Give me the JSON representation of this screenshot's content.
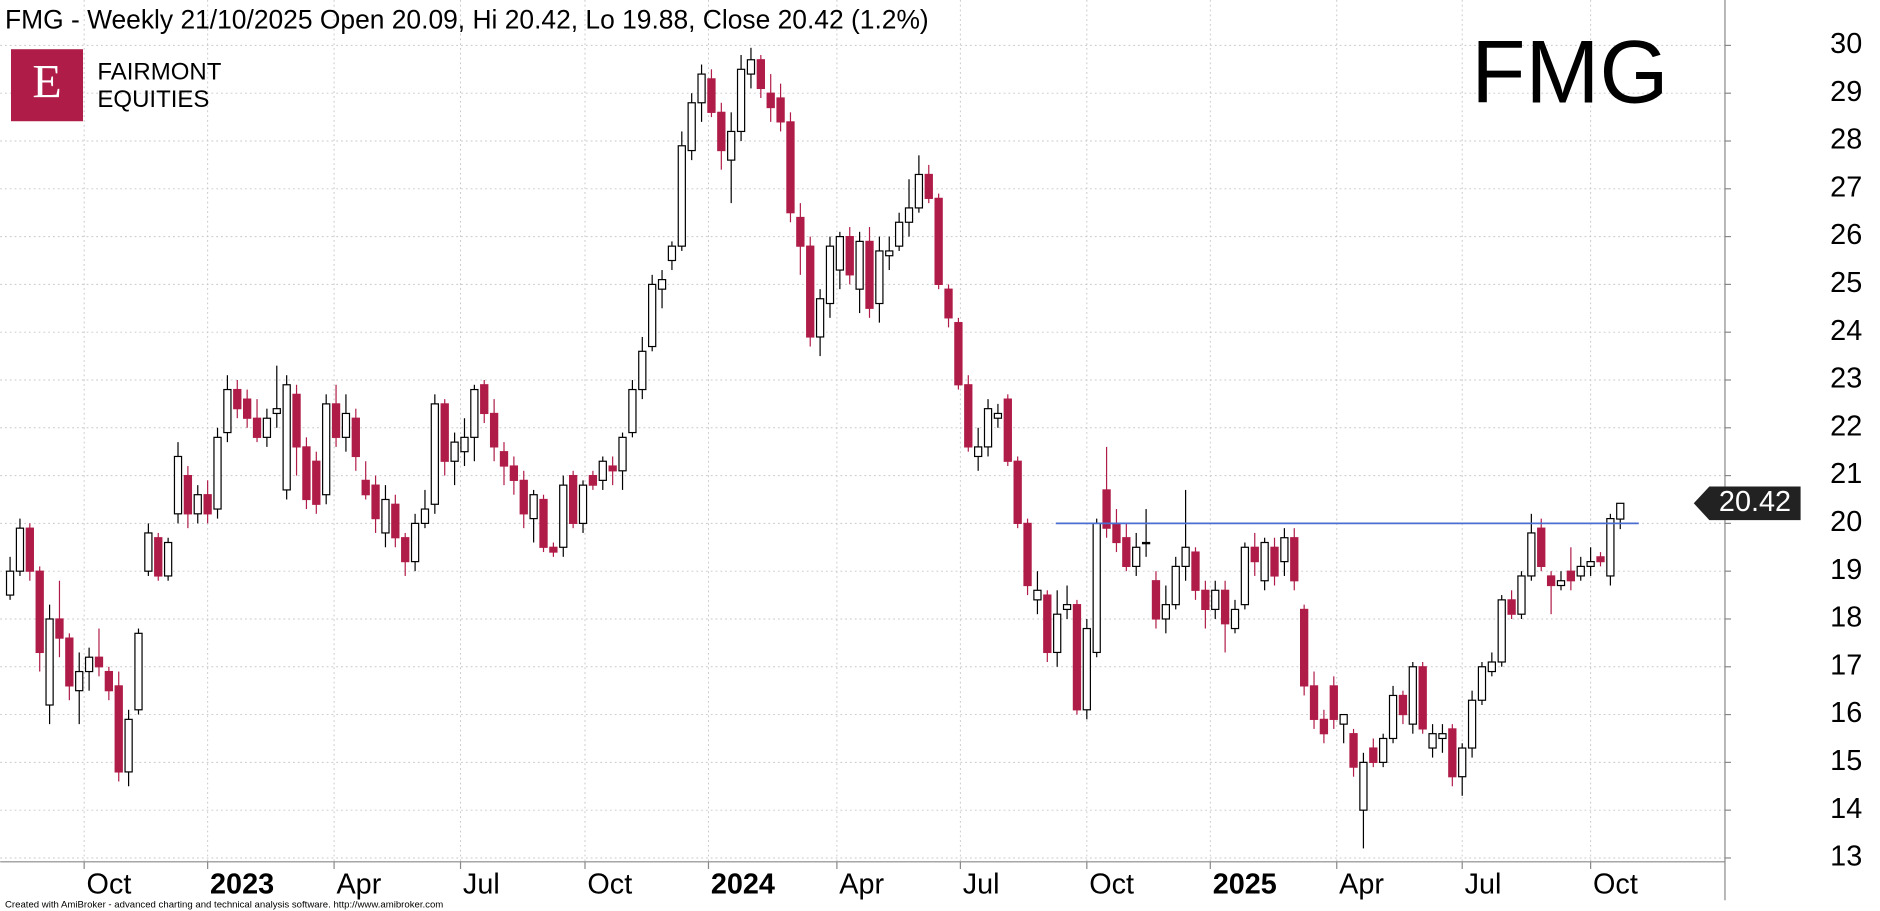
{
  "chart_data": {
    "type": "candlestick",
    "title": "FMG - Weekly 21/10/2025 Open 20.09, Hi 20.42, Lo 19.88, Close 20.42 (1.2%)",
    "symbol": "FMG",
    "logo": {
      "letter": "E",
      "line1": "FAIRMONT",
      "line2": "EQUITIES"
    },
    "footer": "Created with AmiBroker - advanced charting and technical analysis software. http://www.amibroker.com",
    "up_color": "#ffffff",
    "down_color": "#b01c48",
    "line_color": "#4a6fd1",
    "hline": 20,
    "price_marker": 20.42,
    "grid": true,
    "ylim": [
      12.92,
      30.95
    ],
    "yticks": [
      13,
      14,
      15,
      16,
      17,
      18,
      19,
      20,
      21,
      22,
      23,
      24,
      25,
      26,
      27,
      28,
      29,
      30
    ],
    "xlim": [
      -1,
      173.6
    ],
    "xticks": [
      {
        "value": 7.5,
        "label": "Oct"
      },
      {
        "value": 20,
        "label": "2023"
      },
      {
        "value": 32.8,
        "label": "Apr"
      },
      {
        "value": 45.6,
        "label": "Jul"
      },
      {
        "value": 58.2,
        "label": "Oct"
      },
      {
        "value": 70.7,
        "label": "2024"
      },
      {
        "value": 83.7,
        "label": "Apr"
      },
      {
        "value": 96.2,
        "label": "Jul"
      },
      {
        "value": 109,
        "label": "Oct"
      },
      {
        "value": 121.5,
        "label": "2025"
      },
      {
        "value": 134.3,
        "label": "Apr"
      },
      {
        "value": 147,
        "label": "Jul"
      },
      {
        "value": 160,
        "label": "Oct"
      }
    ],
    "candles": [
      [
        18.5,
        19.3,
        18.4,
        19.0
      ],
      [
        19.0,
        20.1,
        18.9,
        19.9
      ],
      [
        19.9,
        20.0,
        18.8,
        19.0
      ],
      [
        19.0,
        19.1,
        16.9,
        17.3
      ],
      [
        16.2,
        18.3,
        15.8,
        18.0
      ],
      [
        18.0,
        18.8,
        17.2,
        17.6
      ],
      [
        17.6,
        17.7,
        16.3,
        16.6
      ],
      [
        16.5,
        17.3,
        15.8,
        16.9
      ],
      [
        16.9,
        17.4,
        16.5,
        17.2
      ],
      [
        17.2,
        17.8,
        16.8,
        17.0
      ],
      [
        16.9,
        17.0,
        16.3,
        16.5
      ],
      [
        16.6,
        16.9,
        14.6,
        14.8
      ],
      [
        14.8,
        16.1,
        14.5,
        15.9
      ],
      [
        16.1,
        17.8,
        16.0,
        17.7
      ],
      [
        19.0,
        20.0,
        18.9,
        19.8
      ],
      [
        19.7,
        19.8,
        18.8,
        18.9
      ],
      [
        18.9,
        19.7,
        18.8,
        19.6
      ],
      [
        20.2,
        21.7,
        20.0,
        21.4
      ],
      [
        21.0,
        21.2,
        19.9,
        20.2
      ],
      [
        20.2,
        20.8,
        20.0,
        20.6
      ],
      [
        20.6,
        20.9,
        20.0,
        20.2
      ],
      [
        20.3,
        22.0,
        20.1,
        21.8
      ],
      [
        21.9,
        23.1,
        21.7,
        22.8
      ],
      [
        22.8,
        23.0,
        22.2,
        22.4
      ],
      [
        22.6,
        22.8,
        22.0,
        22.2
      ],
      [
        22.2,
        22.6,
        21.7,
        21.8
      ],
      [
        21.8,
        22.4,
        21.6,
        22.2
      ],
      [
        22.3,
        23.3,
        22.0,
        22.4
      ],
      [
        20.7,
        23.1,
        20.5,
        22.9
      ],
      [
        22.7,
        22.9,
        21.0,
        21.6
      ],
      [
        21.6,
        21.8,
        20.3,
        20.5
      ],
      [
        21.3,
        21.5,
        20.2,
        20.4
      ],
      [
        20.6,
        22.7,
        20.4,
        22.5
      ],
      [
        22.5,
        22.9,
        21.6,
        21.8
      ],
      [
        21.8,
        22.7,
        21.5,
        22.3
      ],
      [
        22.2,
        22.4,
        21.1,
        21.4
      ],
      [
        20.9,
        21.3,
        20.5,
        20.6
      ],
      [
        20.8,
        21.0,
        19.8,
        20.1
      ],
      [
        19.8,
        20.8,
        19.5,
        20.5
      ],
      [
        20.4,
        20.6,
        19.5,
        19.7
      ],
      [
        19.7,
        19.8,
        18.9,
        19.2
      ],
      [
        19.2,
        20.2,
        19.0,
        20.0
      ],
      [
        20.0,
        20.7,
        19.9,
        20.3
      ],
      [
        20.4,
        22.7,
        20.2,
        22.5
      ],
      [
        22.5,
        22.6,
        21.0,
        21.3
      ],
      [
        21.3,
        21.9,
        20.8,
        21.7
      ],
      [
        21.5,
        22.2,
        21.2,
        21.8
      ],
      [
        21.8,
        22.9,
        21.3,
        22.8
      ],
      [
        22.9,
        23.0,
        22.1,
        22.3
      ],
      [
        22.3,
        22.6,
        21.3,
        21.6
      ],
      [
        21.5,
        21.7,
        20.8,
        21.2
      ],
      [
        21.2,
        21.4,
        20.6,
        20.9
      ],
      [
        20.9,
        21.1,
        19.9,
        20.2
      ],
      [
        20.1,
        20.7,
        19.6,
        20.6
      ],
      [
        20.5,
        20.6,
        19.4,
        19.5
      ],
      [
        19.5,
        19.6,
        19.3,
        19.4
      ],
      [
        19.5,
        21.0,
        19.3,
        20.8
      ],
      [
        21.0,
        21.1,
        19.9,
        20.0
      ],
      [
        20.0,
        20.9,
        19.8,
        20.8
      ],
      [
        21.0,
        21.1,
        20.7,
        20.8
      ],
      [
        20.9,
        21.4,
        20.7,
        21.3
      ],
      [
        21.2,
        21.4,
        20.8,
        21.1
      ],
      [
        21.1,
        21.9,
        20.7,
        21.8
      ],
      [
        21.9,
        23.0,
        21.8,
        22.8
      ],
      [
        22.8,
        23.9,
        22.6,
        23.6
      ],
      [
        23.7,
        25.2,
        23.6,
        25.0
      ],
      [
        24.9,
        25.3,
        24.5,
        25.1
      ],
      [
        25.5,
        25.9,
        25.3,
        25.8
      ],
      [
        25.8,
        28.2,
        25.7,
        27.9
      ],
      [
        27.8,
        29.0,
        27.6,
        28.8
      ],
      [
        28.8,
        29.6,
        28.4,
        29.4
      ],
      [
        29.3,
        29.5,
        28.5,
        28.6
      ],
      [
        28.6,
        28.8,
        27.4,
        27.8
      ],
      [
        27.6,
        28.6,
        26.7,
        28.2
      ],
      [
        28.2,
        29.8,
        28.0,
        29.5
      ],
      [
        29.4,
        29.95,
        29.1,
        29.7
      ],
      [
        29.7,
        29.8,
        28.9,
        29.1
      ],
      [
        29.0,
        29.4,
        28.4,
        28.7
      ],
      [
        28.9,
        29.2,
        28.2,
        28.4
      ],
      [
        28.4,
        28.6,
        26.3,
        26.5
      ],
      [
        26.4,
        26.7,
        25.2,
        25.8
      ],
      [
        25.8,
        26.0,
        23.7,
        23.9
      ],
      [
        23.9,
        24.9,
        23.5,
        24.7
      ],
      [
        24.6,
        26.0,
        24.3,
        25.8
      ],
      [
        25.3,
        26.1,
        24.9,
        26.0
      ],
      [
        26.0,
        26.2,
        25.0,
        25.2
      ],
      [
        24.9,
        26.1,
        24.4,
        25.9
      ],
      [
        25.9,
        26.2,
        24.3,
        24.5
      ],
      [
        24.6,
        26.0,
        24.2,
        25.7
      ],
      [
        25.6,
        26.0,
        25.3,
        25.7
      ],
      [
        25.8,
        26.5,
        25.7,
        26.3
      ],
      [
        26.3,
        27.2,
        26.0,
        26.6
      ],
      [
        26.6,
        27.7,
        26.5,
        27.3
      ],
      [
        27.3,
        27.5,
        26.7,
        26.8
      ],
      [
        26.8,
        26.9,
        24.9,
        25.0
      ],
      [
        24.9,
        25.0,
        24.1,
        24.3
      ],
      [
        24.2,
        24.3,
        22.8,
        22.9
      ],
      [
        22.9,
        23.1,
        21.5,
        21.6
      ],
      [
        21.4,
        22.0,
        21.1,
        21.6
      ],
      [
        21.6,
        22.6,
        21.4,
        22.4
      ],
      [
        22.2,
        22.5,
        22.0,
        22.3
      ],
      [
        22.6,
        22.7,
        21.2,
        21.3
      ],
      [
        21.3,
        21.4,
        19.9,
        20.0
      ],
      [
        20.0,
        20.1,
        18.5,
        18.7
      ],
      [
        18.4,
        19.0,
        18.1,
        18.6
      ],
      [
        18.5,
        18.6,
        17.1,
        17.3
      ],
      [
        17.3,
        18.6,
        17.0,
        18.1
      ],
      [
        18.2,
        18.7,
        18.0,
        18.3
      ],
      [
        18.3,
        18.4,
        16.0,
        16.1
      ],
      [
        16.1,
        18.0,
        15.9,
        17.8
      ],
      [
        17.3,
        20.1,
        17.2,
        20.0
      ],
      [
        20.7,
        21.6,
        19.7,
        19.9
      ],
      [
        20.0,
        20.3,
        19.4,
        19.6
      ],
      [
        19.7,
        20.0,
        19.0,
        19.1
      ],
      [
        19.1,
        19.8,
        18.9,
        19.5
      ],
      [
        19.6,
        20.3,
        19.3,
        19.6
      ],
      [
        18.8,
        19.0,
        17.8,
        18.0
      ],
      [
        18.0,
        18.7,
        17.7,
        18.3
      ],
      [
        18.3,
        19.3,
        18.2,
        19.1
      ],
      [
        19.1,
        20.7,
        18.8,
        19.5
      ],
      [
        19.4,
        19.5,
        18.4,
        18.6
      ],
      [
        18.6,
        18.8,
        17.8,
        18.2
      ],
      [
        18.2,
        18.8,
        18.0,
        18.6
      ],
      [
        18.6,
        18.8,
        17.3,
        17.9
      ],
      [
        17.8,
        18.4,
        17.7,
        18.2
      ],
      [
        18.3,
        19.6,
        18.2,
        19.5
      ],
      [
        19.5,
        19.8,
        18.9,
        19.2
      ],
      [
        18.8,
        19.7,
        18.6,
        19.6
      ],
      [
        19.5,
        19.7,
        18.7,
        18.9
      ],
      [
        19.2,
        19.9,
        18.9,
        19.7
      ],
      [
        19.7,
        19.9,
        18.6,
        18.8
      ],
      [
        18.2,
        18.3,
        16.4,
        16.6
      ],
      [
        16.6,
        16.9,
        15.7,
        15.9
      ],
      [
        15.9,
        16.1,
        15.4,
        15.6
      ],
      [
        16.6,
        16.8,
        15.7,
        15.9
      ],
      [
        15.8,
        16.0,
        15.4,
        16.0
      ],
      [
        15.6,
        15.7,
        14.7,
        14.9
      ],
      [
        14.0,
        15.2,
        13.2,
        15.0
      ],
      [
        15.3,
        15.5,
        14.9,
        15.0
      ],
      [
        15.0,
        15.6,
        14.9,
        15.5
      ],
      [
        15.5,
        16.6,
        15.4,
        16.4
      ],
      [
        16.4,
        16.5,
        15.8,
        16.0
      ],
      [
        15.8,
        17.1,
        15.6,
        17.0
      ],
      [
        17.0,
        17.1,
        15.6,
        15.7
      ],
      [
        15.3,
        15.8,
        15.1,
        15.6
      ],
      [
        15.5,
        15.8,
        15.2,
        15.6
      ],
      [
        15.7,
        15.8,
        14.5,
        14.7
      ],
      [
        14.7,
        15.4,
        14.3,
        15.3
      ],
      [
        15.3,
        16.5,
        15.1,
        16.3
      ],
      [
        16.3,
        17.1,
        16.2,
        17.0
      ],
      [
        16.9,
        17.3,
        16.8,
        17.1
      ],
      [
        17.1,
        18.5,
        17.0,
        18.4
      ],
      [
        18.4,
        18.6,
        18.0,
        18.1
      ],
      [
        18.1,
        19.0,
        18.0,
        18.9
      ],
      [
        18.9,
        20.2,
        18.8,
        19.8
      ],
      [
        19.9,
        20.1,
        19.0,
        19.1
      ],
      [
        18.9,
        19.0,
        18.1,
        18.7
      ],
      [
        18.7,
        19.0,
        18.6,
        18.8
      ],
      [
        19.0,
        19.5,
        18.6,
        18.8
      ],
      [
        18.9,
        19.3,
        18.8,
        19.1
      ],
      [
        19.1,
        19.5,
        18.9,
        19.2
      ],
      [
        19.3,
        19.4,
        19.1,
        19.2
      ],
      [
        18.9,
        20.2,
        18.7,
        20.1
      ],
      [
        20.09,
        20.42,
        19.88,
        20.42
      ]
    ]
  }
}
